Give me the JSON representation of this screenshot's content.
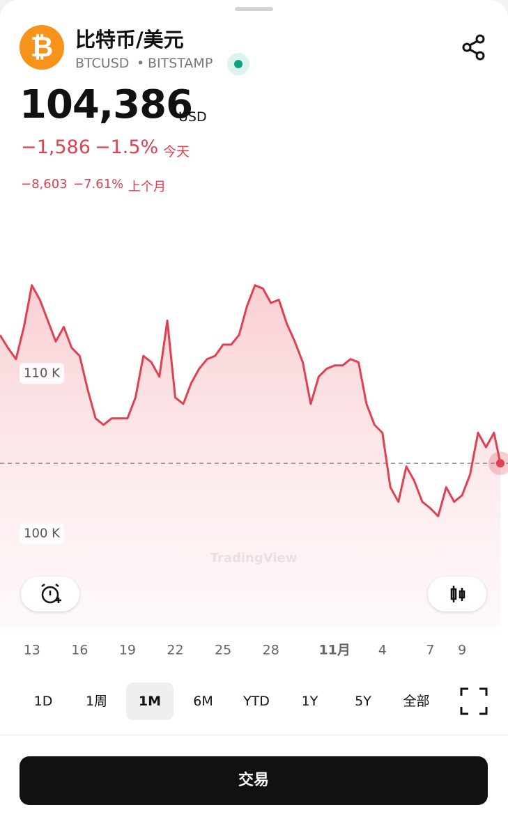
{
  "header": {
    "coin_symbol": "₿",
    "title": "比特币/美元",
    "symbol": "BTCUSD",
    "separator": "•",
    "exchange": "BITSTAMP",
    "price": "104,386",
    "currency": "USD",
    "change": "−1,586",
    "change_pct": "−1.5%",
    "period": "今天",
    "month_change": "−8,603",
    "month_pct": "−7.61%",
    "month_period": "上个月"
  },
  "chart_data": {
    "type": "line",
    "watermark": "TradingView",
    "color": "#e0404f",
    "x": [
      11,
      11.5,
      12,
      12.5,
      13,
      13.5,
      14,
      14.5,
      15,
      15.5,
      16,
      16.5,
      17,
      17.5,
      18,
      18.5,
      19,
      19.5,
      20,
      20.5,
      21,
      21.5,
      22,
      22.5,
      23,
      23.5,
      24,
      24.5,
      25,
      25.5,
      26,
      26.5,
      27,
      27.5,
      28,
      28.5,
      29,
      29.5,
      30,
      30.5,
      31,
      31.5,
      32,
      32.5,
      33,
      33.5,
      34,
      34.5,
      35,
      35.5,
      36,
      36.5,
      37,
      37.5,
      38,
      38.5,
      39,
      39.5,
      40,
      40.5,
      41,
      41.5,
      42,
      42.4
    ],
    "values": [
      112.4,
      111.6,
      110.9,
      112.9,
      115.5,
      114.6,
      113.3,
      112.0,
      112.9,
      111.6,
      111.1,
      109.0,
      107.2,
      106.8,
      107.2,
      107.2,
      107.2,
      108.5,
      111.1,
      110.7,
      109.8,
      113.3,
      108.5,
      108.1,
      109.4,
      110.3,
      110.9,
      111.1,
      111.8,
      111.8,
      112.4,
      114.2,
      115.5,
      115.3,
      114.4,
      114.6,
      113.1,
      112.0,
      110.7,
      108.1,
      109.8,
      110.3,
      110.5,
      110.5,
      110.9,
      110.7,
      108.1,
      106.8,
      106.3,
      102.9,
      102.0,
      104.2,
      103.3,
      102.0,
      101.6,
      101.1,
      102.9,
      102.0,
      102.4,
      103.7,
      106.3,
      105.4,
      106.3,
      104.4
    ],
    "xlim": [
      11,
      42.4
    ],
    "ylim": [
      94.2,
      120.7
    ],
    "xticks": [
      13,
      16,
      19,
      22,
      25,
      28,
      {
        "value": 32,
        "label": "11月"
      },
      {
        "value": 35,
        "label": "4"
      },
      {
        "value": 38,
        "label": "7"
      },
      {
        "value": 40,
        "label": "9"
      }
    ],
    "yticks": [
      {
        "value": 110,
        "label": "110 K"
      },
      {
        "value": 100,
        "label": "100 K"
      }
    ]
  },
  "ranges": {
    "options": [
      "1D",
      "1周",
      "1M",
      "6M",
      "YTD",
      "1Y",
      "5Y",
      "全部"
    ],
    "selected": "1M"
  },
  "button": "交易"
}
